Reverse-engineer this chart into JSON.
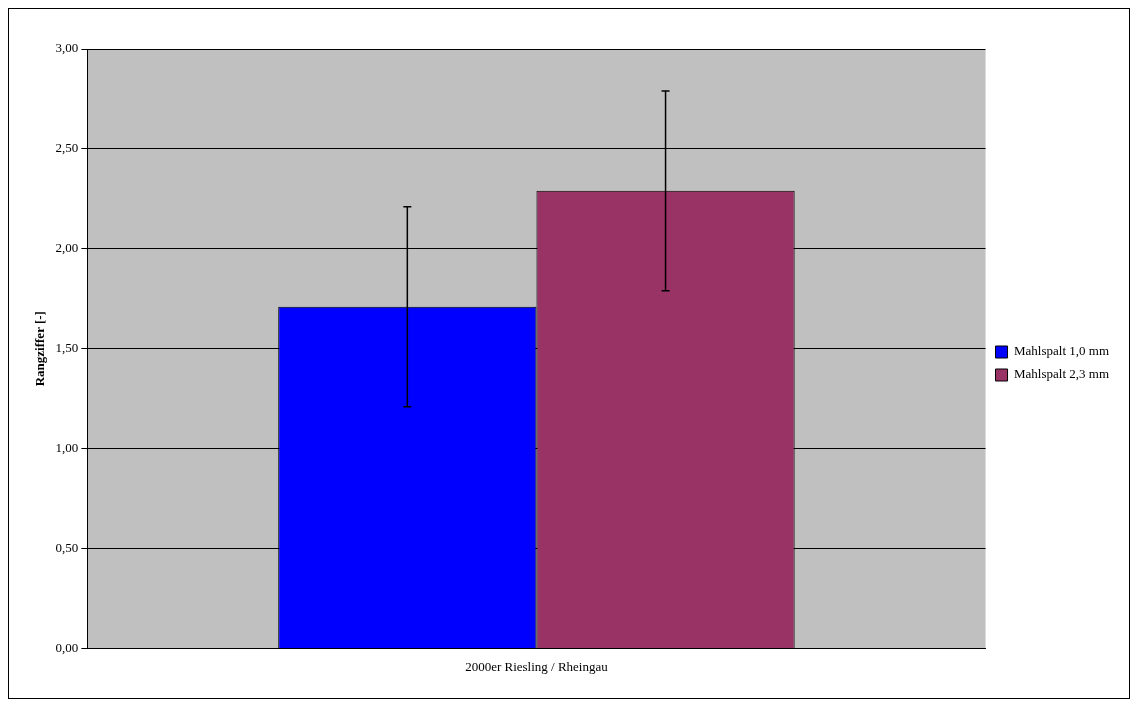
{
  "chart_data": {
    "type": "bar",
    "ylabel": "Rangziffer [-]",
    "categories": [
      "2000er Riesling / Rheingau"
    ],
    "series": [
      {
        "name": "Mahlspalt 1,0 mm",
        "color": "#0000ff",
        "values": [
          1.71
        ],
        "errors": [
          0.5
        ]
      },
      {
        "name": "Mahlspalt 2,3 mm",
        "color": "#993366",
        "values": [
          2.29
        ],
        "errors": [
          0.5
        ]
      }
    ],
    "ylim": [
      0,
      3
    ],
    "yticks": [
      {
        "value": 0,
        "label": "0,00"
      },
      {
        "value": 0.5,
        "label": "0,50"
      },
      {
        "value": 1,
        "label": "1,00"
      },
      {
        "value": 1.5,
        "label": "1,50"
      },
      {
        "value": 2,
        "label": "2,00"
      },
      {
        "value": 2.5,
        "label": "2,50"
      },
      {
        "value": 3,
        "label": "3,00"
      }
    ],
    "grid": "y",
    "legend": "right"
  }
}
